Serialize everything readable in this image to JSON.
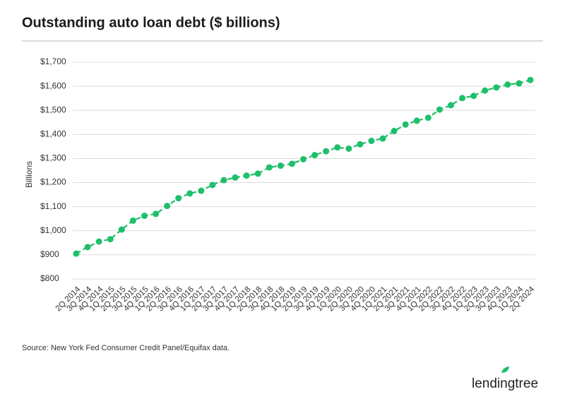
{
  "chart_data": {
    "type": "line",
    "title": "Outstanding auto loan debt ($ billions)",
    "y_label": "Billions",
    "source": "Source: New York Fed Consumer Credit Panel/Equifax data.",
    "categories": [
      "2Q 2014",
      "3Q 2014",
      "4Q 2014",
      "1Q 2015",
      "2Q 2015",
      "3Q 2015",
      "4Q 2015",
      "1Q 2016",
      "2Q 2016",
      "3Q 2016",
      "4Q 2016",
      "1Q 2017",
      "2Q 2017",
      "3Q 2017",
      "4Q 2017",
      "1Q 2018",
      "2Q 2018",
      "3Q 2018",
      "4Q 2018",
      "1Q 2019",
      "2Q 2019",
      "3Q 2019",
      "4Q 2019",
      "1Q 2020",
      "2Q 2020",
      "3Q 2020",
      "4Q 2020",
      "1Q 2021",
      "2Q 2021",
      "3Q 2021",
      "4Q 2021",
      "1Q 2022",
      "2Q 2022",
      "3Q 2022",
      "4Q 2022",
      "1Q 2023",
      "2Q 2023",
      "3Q 2023",
      "4Q 2023",
      "1Q 2024",
      "2Q 2024"
    ],
    "values": [
      905,
      932,
      955,
      965,
      1005,
      1042,
      1062,
      1070,
      1103,
      1135,
      1155,
      1166,
      1190,
      1210,
      1221,
      1229,
      1237,
      1263,
      1270,
      1278,
      1297,
      1314,
      1330,
      1346,
      1341,
      1359,
      1373,
      1383,
      1414,
      1441,
      1457,
      1469,
      1503,
      1521,
      1551,
      1560,
      1582,
      1595,
      1607,
      1612,
      1626
    ],
    "color": "#1fbf6b",
    "ylim": [
      800,
      1700
    ],
    "yticks": [
      {
        "value": 800,
        "label": "$800"
      },
      {
        "value": 900,
        "label": "$900"
      },
      {
        "value": 1000,
        "label": "$1,000"
      },
      {
        "value": 1100,
        "label": "$1,100"
      },
      {
        "value": 1200,
        "label": "$1,200"
      },
      {
        "value": 1300,
        "label": "$1,300"
      },
      {
        "value": 1400,
        "label": "$1,400"
      },
      {
        "value": 1500,
        "label": "$1,500"
      },
      {
        "value": 1600,
        "label": "$1,600"
      },
      {
        "value": 1700,
        "label": "$1,700"
      }
    ],
    "grid": true
  },
  "logo": "lendingtree"
}
